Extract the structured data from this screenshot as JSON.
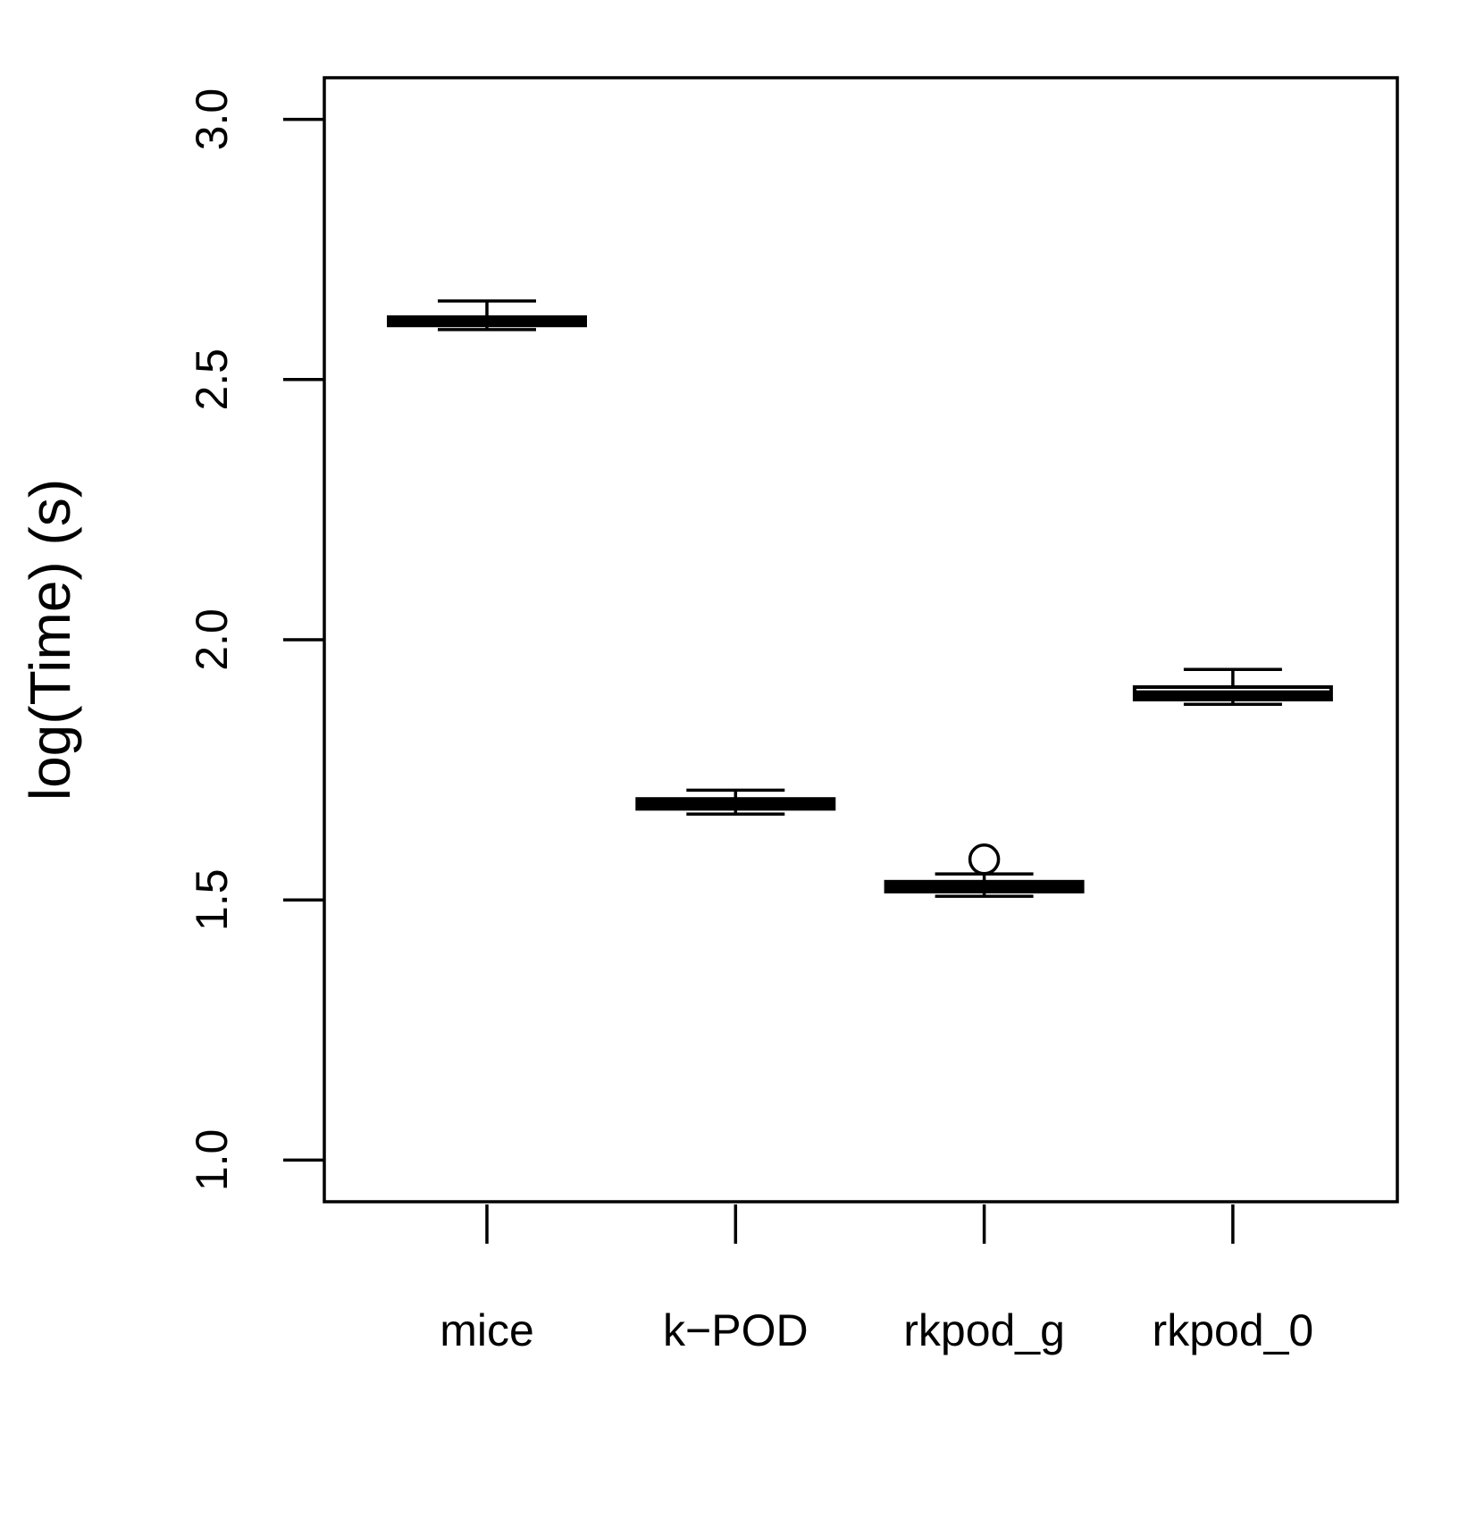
{
  "chart_data": {
    "type": "boxplot",
    "title": "",
    "xlabel": "",
    "ylabel": "log(Time) (s)",
    "ylim": [
      0.92,
      3.08
    ],
    "yticks": [
      "1.0",
      "1.5",
      "2.0",
      "2.5",
      "3.0"
    ],
    "categories": [
      "mice",
      "k−POD",
      "rkpod_g",
      "rkpod_0"
    ],
    "boxes": [
      {
        "category": "mice",
        "whisker_low": 2.596,
        "q1": 2.604,
        "median": 2.612,
        "q3": 2.62,
        "whisker_high": 2.651,
        "outliers": []
      },
      {
        "category": "k−POD",
        "whisker_low": 1.665,
        "q1": 1.675,
        "median": 1.685,
        "q3": 1.694,
        "whisker_high": 1.711,
        "outliers": []
      },
      {
        "category": "rkpod_g",
        "whisker_low": 1.507,
        "q1": 1.516,
        "median": 1.527,
        "q3": 1.535,
        "whisker_high": 1.55,
        "outliers": [
          1.578
        ]
      },
      {
        "category": "rkpod_0",
        "whisker_low": 1.876,
        "q1": 1.885,
        "median": 1.895,
        "q3": 1.909,
        "whisker_high": 1.943,
        "outliers": []
      }
    ],
    "grid": false,
    "legend": "none"
  },
  "colors": {
    "stroke": "#000000",
    "background": "#ffffff"
  }
}
